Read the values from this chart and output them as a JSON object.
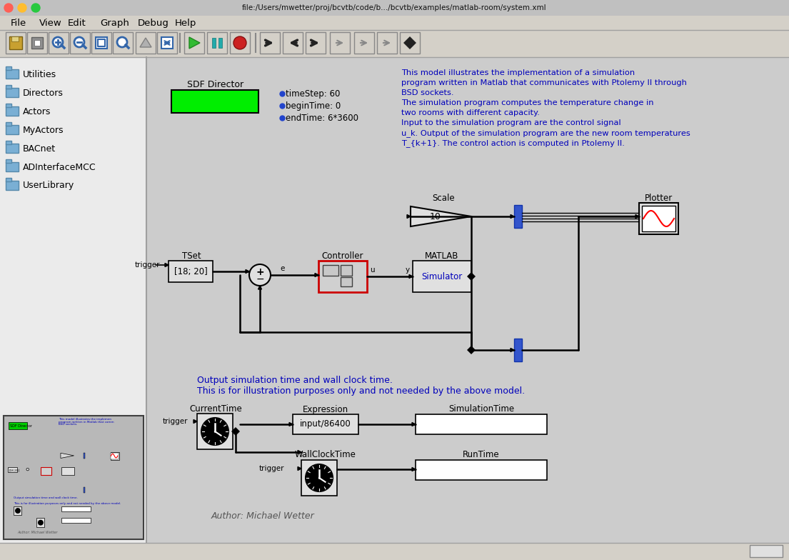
{
  "title_bar": "file:/Users/mwetter/proj/bcvtb/code/b.../bcvtb/examples/matlab-room/system.xml",
  "window_bg": "#d4d0c8",
  "canvas_bg": "#cccccc",
  "sidebar_bg": "#ebebeb",
  "sidebar_items": [
    "Utilities",
    "Directors",
    "Actors",
    "MyActors",
    "BACnet",
    "ADInterfaceMCC",
    "UserLibrary"
  ],
  "menu_items": [
    "File",
    "View",
    "Edit",
    "Graph",
    "Debug",
    "Help"
  ],
  "menu_x": [
    15,
    55,
    95,
    140,
    193,
    245
  ],
  "sdf_label": "SDF Director",
  "sdf_box_color": "#00ee00",
  "params": [
    "timeStep: 60",
    "beginTime: 0",
    "endTime: 6*3600"
  ],
  "description": [
    "This model illustrates the implementation of a simulation",
    "program written in Matlab that communicates with Ptolemy II through",
    "BSD sockets.",
    "The simulation program computes the temperature change in",
    "two rooms with different capacity.",
    "Input to the simulation program are the control signal",
    "u_k. Output of the simulation program are the new room temperatures",
    "T_{k+1}. The control action is computed in Ptolemy II."
  ],
  "desc_color": "#0000bb",
  "author": "Author: Michael Wetter",
  "output_note": [
    "Output simulation time and wall clock time.",
    "This is for illustration purposes only and not needed by the above model."
  ],
  "output_note_color": "#0000bb",
  "folder_color": "#7aafd4",
  "folder_edge": "#5588aa"
}
